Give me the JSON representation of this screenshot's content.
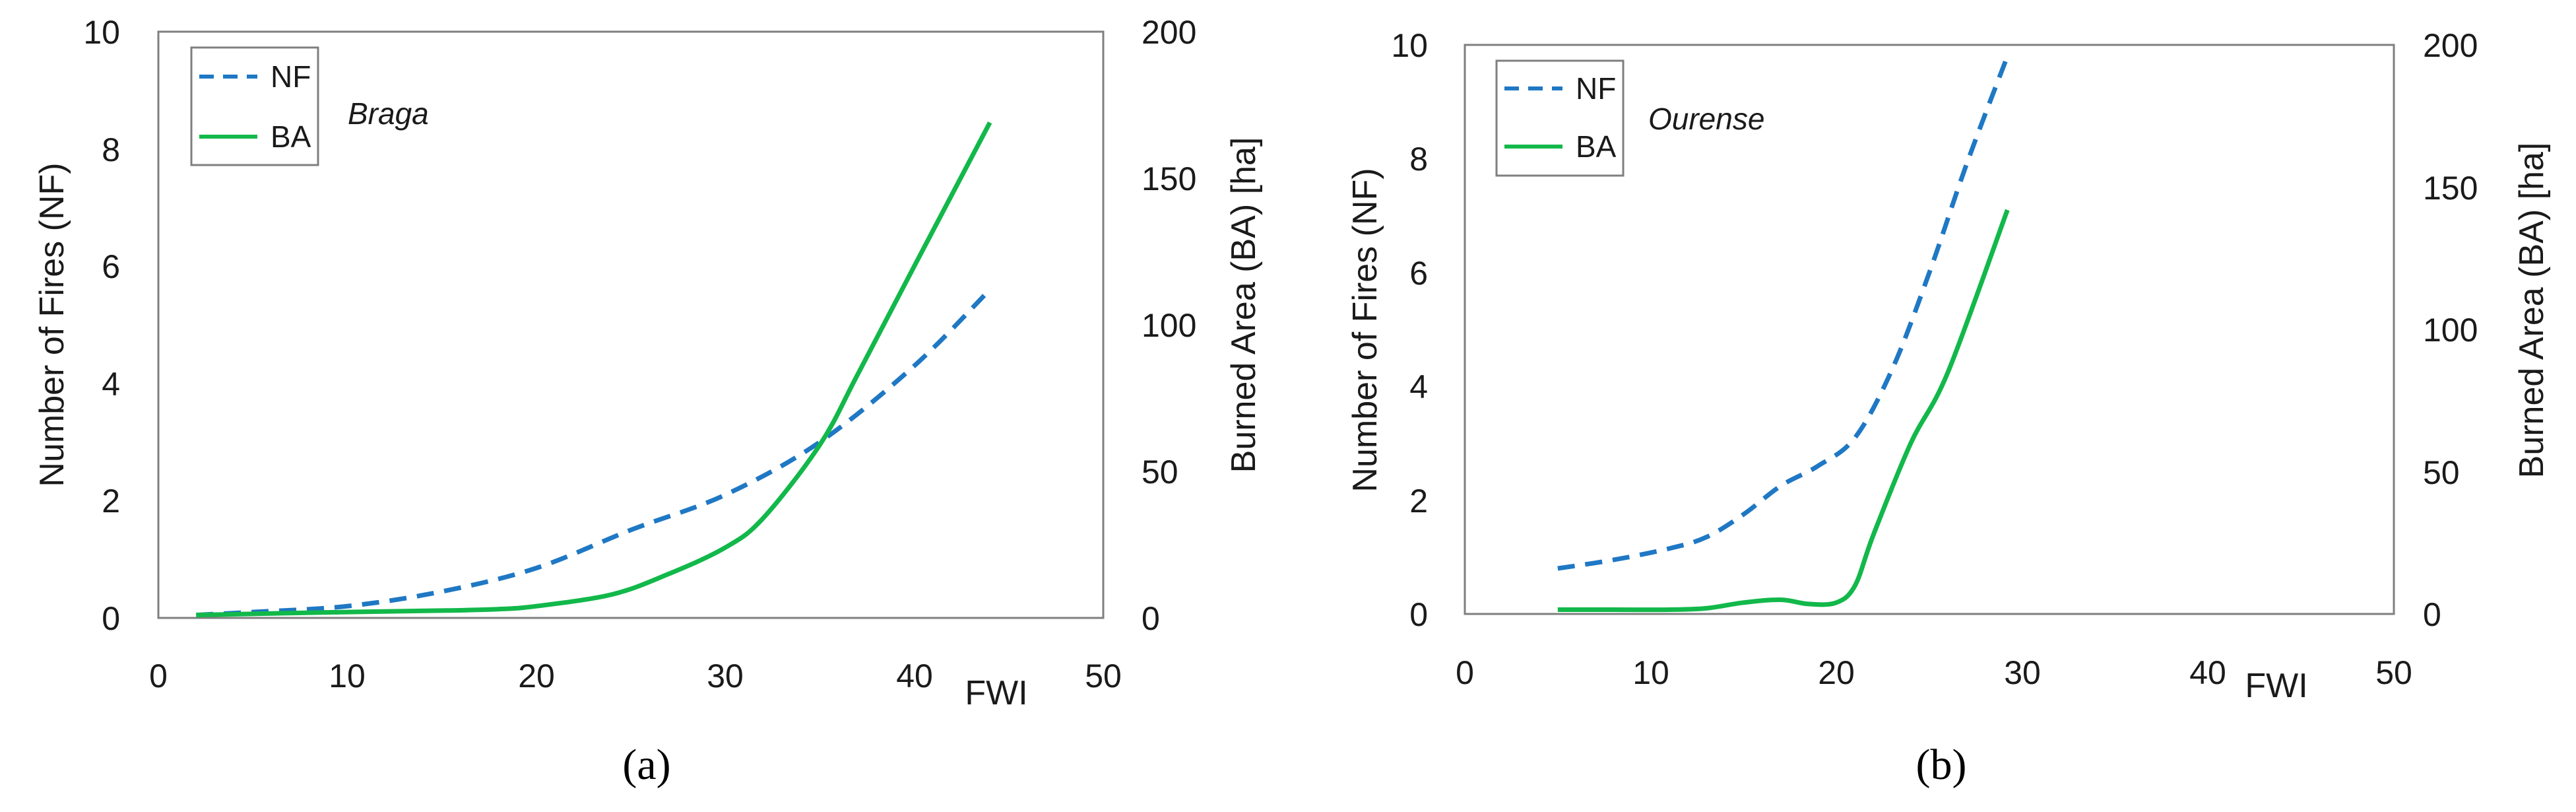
{
  "colors": {
    "nf": "#1f78c4",
    "ba": "#12b84a"
  },
  "chart_data": [
    {
      "type": "line",
      "panel_label": "(a)",
      "region": "Braga",
      "xlabel": "FWI",
      "ylabel": "Number of Fires (NF)",
      "y2label": "Burned Area (BA) [ha]",
      "xlim": [
        0,
        50
      ],
      "ylim": [
        0,
        10
      ],
      "y2lim": [
        0,
        200
      ],
      "x_ticks": [
        "0",
        "10",
        "20",
        "30",
        "40",
        "50"
      ],
      "y_ticks": [
        "0",
        "2",
        "4",
        "6",
        "8",
        "10"
      ],
      "y2_ticks": [
        "0",
        "50",
        "100",
        "150",
        "200"
      ],
      "series": [
        {
          "name": "NF",
          "axis": "left",
          "style": "dashed",
          "x": [
            2,
            5,
            10,
            15,
            20,
            25,
            30,
            35,
            40,
            44
          ],
          "y": [
            0.05,
            0.1,
            0.2,
            0.45,
            0.85,
            1.5,
            2.1,
            3.0,
            4.3,
            5.6
          ]
        },
        {
          "name": "BA",
          "axis": "right",
          "style": "solid",
          "x": [
            2,
            10,
            15,
            18,
            20,
            24,
            27,
            30,
            32,
            35,
            37,
            40,
            44
          ],
          "y": [
            1,
            2,
            2.5,
            3,
            4,
            8,
            15,
            24,
            34,
            59,
            83,
            120,
            169
          ]
        }
      ]
    },
    {
      "type": "line",
      "panel_label": "(b)",
      "region": "Ourense",
      "xlabel": "FWI",
      "ylabel": "Number of Fires (NF)",
      "y2label": "Burned Area (BA) [ha]",
      "xlim": [
        0,
        50
      ],
      "ylim": [
        0,
        10
      ],
      "y2lim": [
        0,
        200
      ],
      "x_ticks": [
        "0",
        "10",
        "20",
        "30",
        "40",
        "50"
      ],
      "y_ticks": [
        "0",
        "2",
        "4",
        "6",
        "8",
        "10"
      ],
      "y2_ticks": [
        "0",
        "50",
        "100",
        "150",
        "200"
      ],
      "series": [
        {
          "name": "NF",
          "axis": "left",
          "style": "dashed",
          "x": [
            5,
            8,
            11,
            13,
            15,
            17,
            19,
            21,
            23,
            25,
            27,
            29.2
          ],
          "y": [
            0.8,
            0.95,
            1.15,
            1.35,
            1.75,
            2.25,
            2.6,
            3.1,
            4.3,
            6.0,
            7.9,
            9.8
          ]
        },
        {
          "name": "BA",
          "axis": "right",
          "style": "solid",
          "x": [
            5,
            8,
            11,
            13,
            15,
            17,
            18.5,
            20,
            21,
            22,
            24,
            26,
            29.2
          ],
          "y": [
            1.5,
            1.5,
            1.5,
            2,
            4,
            5,
            3.5,
            4,
            10,
            28,
            60,
            85,
            142
          ]
        }
      ]
    }
  ]
}
